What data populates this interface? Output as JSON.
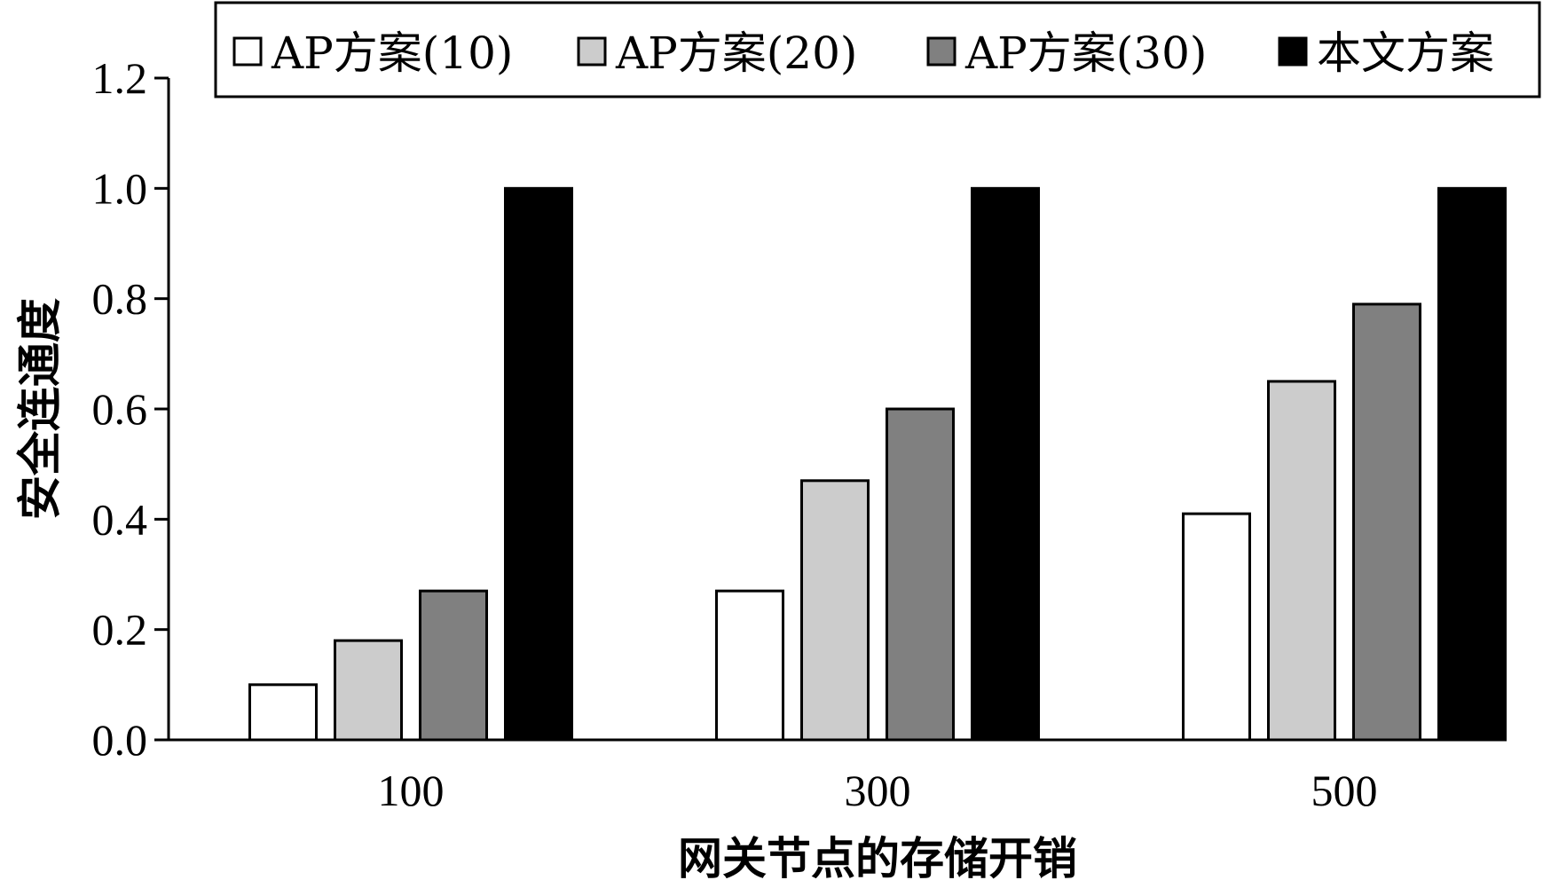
{
  "chart_data": {
    "type": "bar",
    "categories": [
      "100",
      "300",
      "500"
    ],
    "series": [
      {
        "name": "AP方案(10)",
        "values": [
          0.1,
          0.27,
          0.41
        ],
        "color": "#ffffff"
      },
      {
        "name": "AP方案(20)",
        "values": [
          0.18,
          0.47,
          0.65
        ],
        "color": "#cccccc"
      },
      {
        "name": "AP方案(30)",
        "values": [
          0.27,
          0.6,
          0.79
        ],
        "color": "#808080"
      },
      {
        "name": "本文方案",
        "values": [
          1.0,
          1.0,
          1.0
        ],
        "color": "#000000"
      }
    ],
    "title": "",
    "xlabel": "网关节点的存储开销",
    "ylabel": "安全连通度",
    "ylim": [
      0,
      1.2
    ],
    "yticks": [
      "0.0",
      "0.2",
      "0.4",
      "0.6",
      "0.8",
      "1.0",
      "1.2"
    ],
    "grid": false,
    "legend_position": "top"
  }
}
